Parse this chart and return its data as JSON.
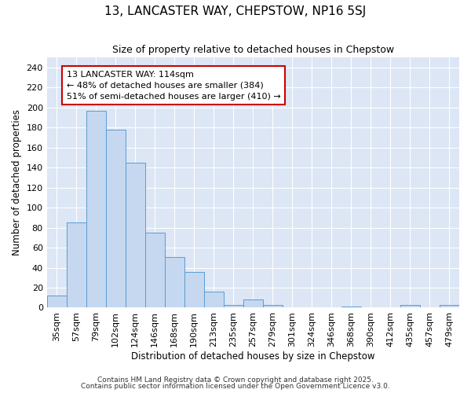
{
  "title1": "13, LANCASTER WAY, CHEPSTOW, NP16 5SJ",
  "title2": "Size of property relative to detached houses in Chepstow",
  "xlabel": "Distribution of detached houses by size in Chepstow",
  "ylabel": "Number of detached properties",
  "categories": [
    "35sqm",
    "57sqm",
    "79sqm",
    "102sqm",
    "124sqm",
    "146sqm",
    "168sqm",
    "190sqm",
    "213sqm",
    "235sqm",
    "257sqm",
    "279sqm",
    "301sqm",
    "324sqm",
    "346sqm",
    "368sqm",
    "390sqm",
    "412sqm",
    "435sqm",
    "457sqm",
    "479sqm"
  ],
  "values": [
    12,
    85,
    197,
    178,
    145,
    75,
    51,
    36,
    16,
    3,
    8,
    3,
    0,
    0,
    0,
    1,
    0,
    0,
    3,
    0,
    3
  ],
  "bar_color": "#c5d8f0",
  "bar_edge_color": "#5b9bd5",
  "plot_bg_color": "#dce6f5",
  "fig_bg_color": "#ffffff",
  "grid_color": "#ffffff",
  "annotation_text_line1": "13 LANCASTER WAY: 114sqm",
  "annotation_text_line2": "← 48% of detached houses are smaller (384)",
  "annotation_text_line3": "51% of semi-detached houses are larger (410) →",
  "annotation_box_edge_color": "#cc0000",
  "ylim": [
    0,
    250
  ],
  "yticks": [
    0,
    20,
    40,
    60,
    80,
    100,
    120,
    140,
    160,
    180,
    200,
    220,
    240
  ],
  "footer1": "Contains HM Land Registry data © Crown copyright and database right 2025.",
  "footer2": "Contains public sector information licensed under the Open Government Licence v3.0."
}
